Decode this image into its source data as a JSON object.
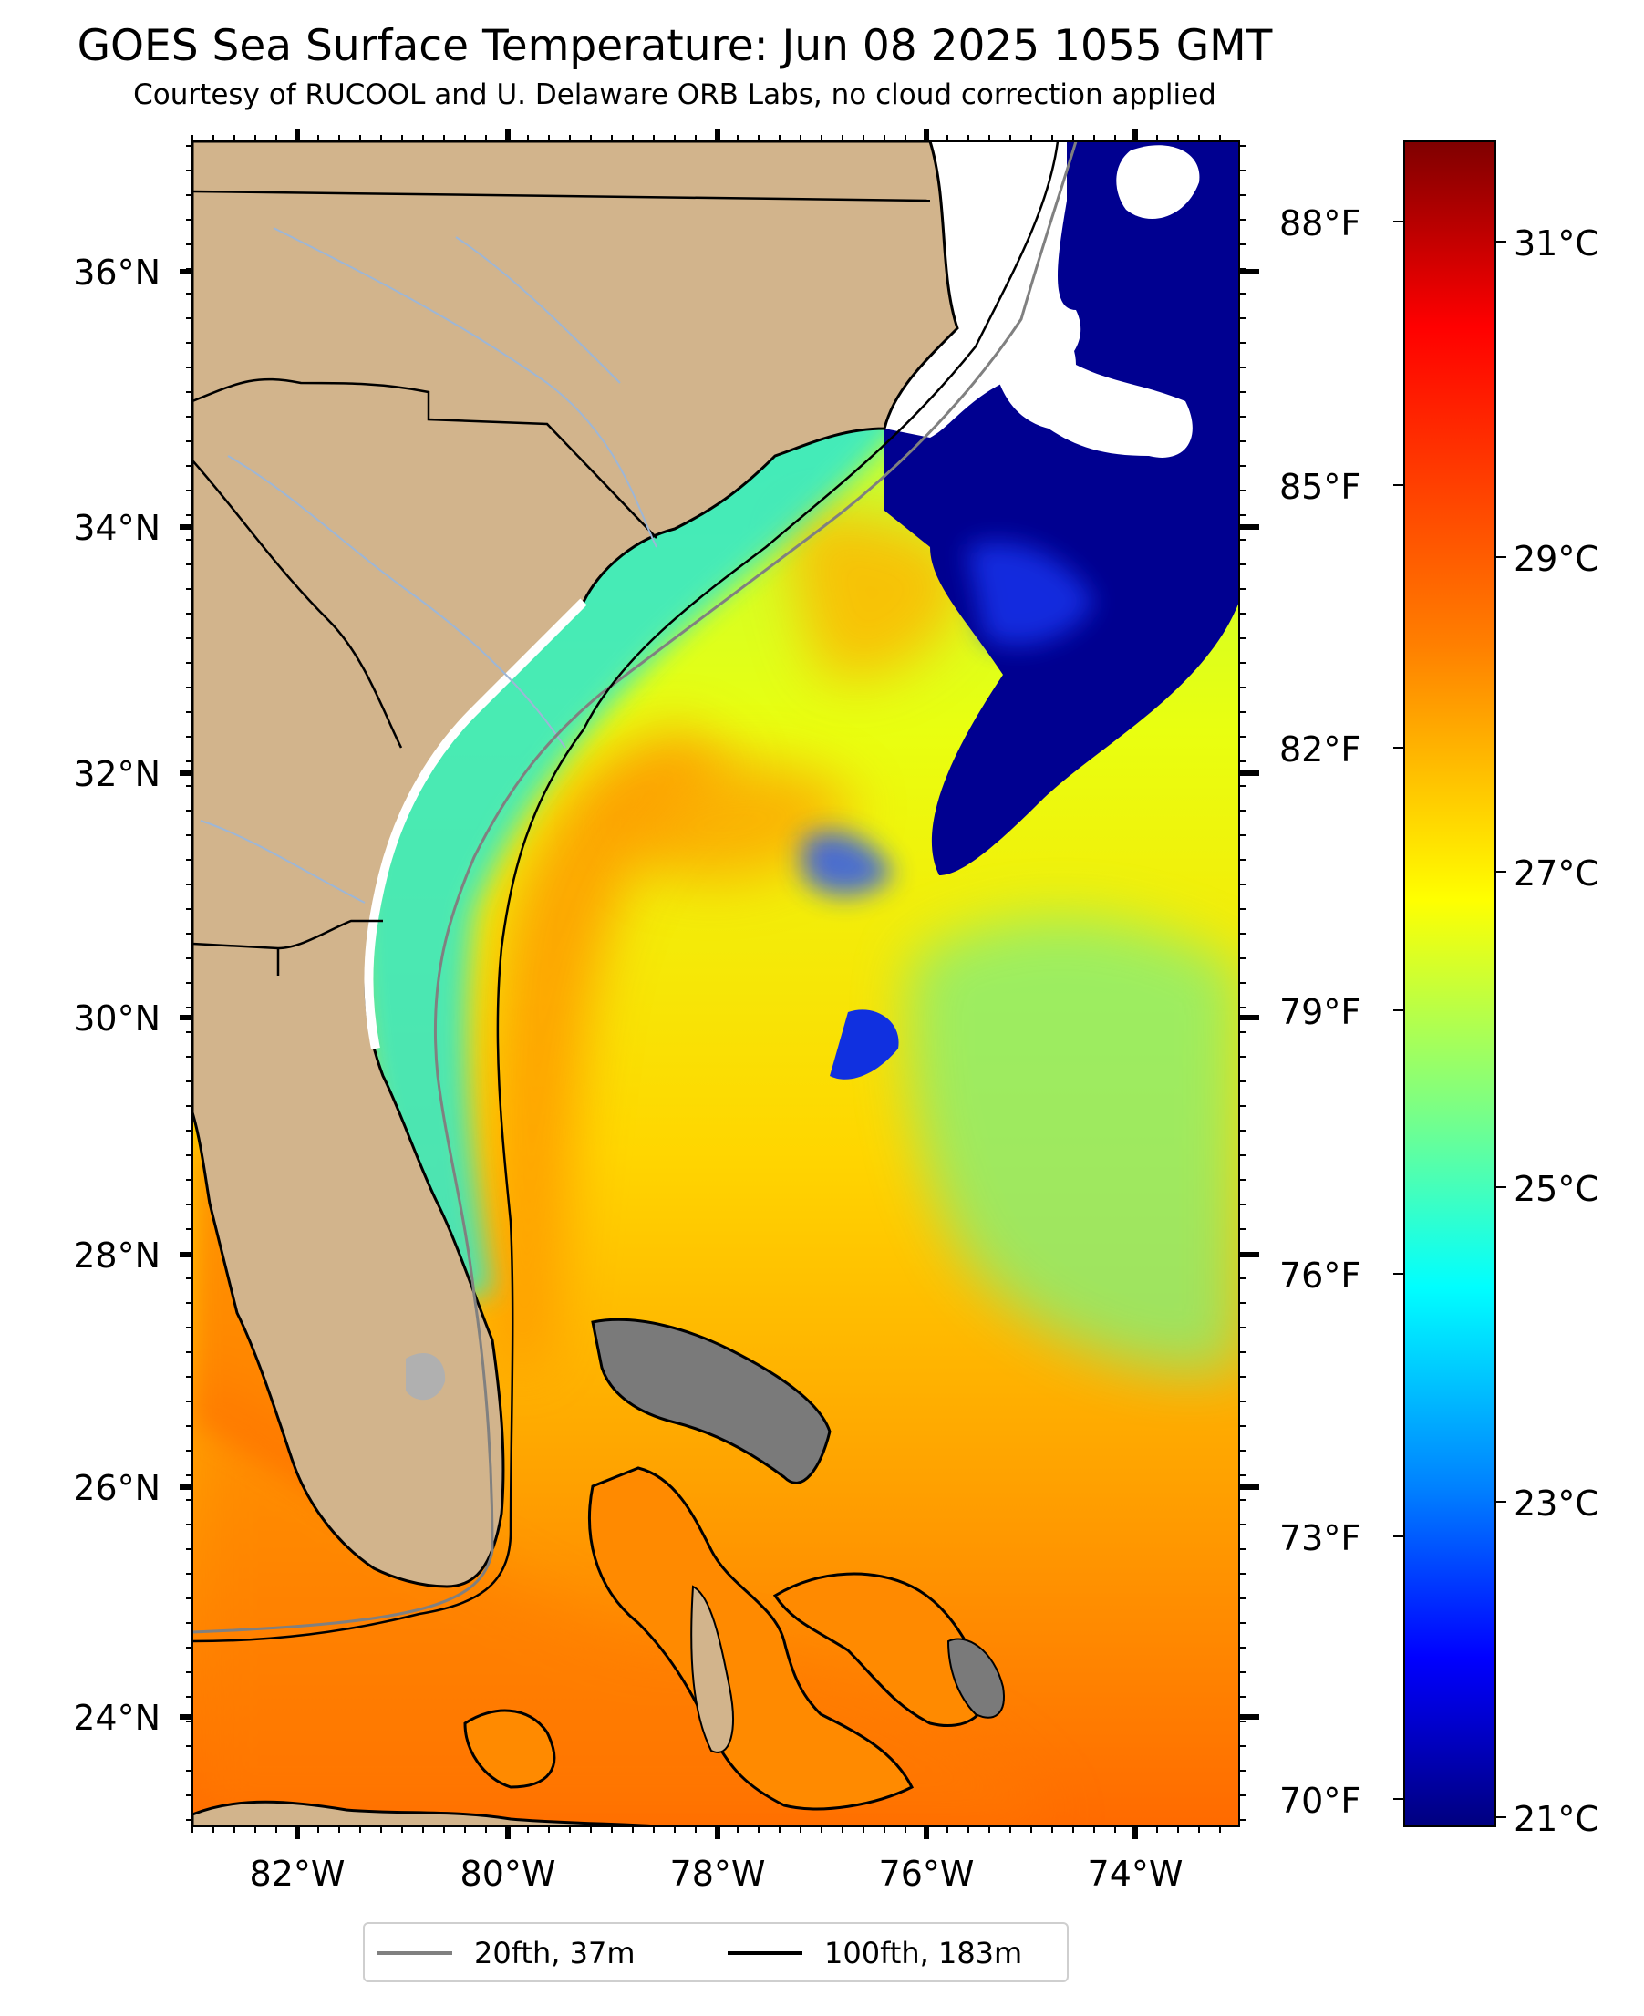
{
  "title": "GOES Sea Surface Temperature: Jun 08 2025 1055 GMT",
  "subtitle": "Courtesy of RUCOOL and U. Delaware ORB Labs, no cloud correction applied",
  "map": {
    "lon_ticks": [
      "82°W",
      "80°W",
      "78°W",
      "76°W",
      "74°W"
    ],
    "lat_ticks": [
      "36°N",
      "34°N",
      "32°N",
      "30°N",
      "28°N",
      "26°N",
      "24°N"
    ],
    "fahrenheit_ticks": [
      "88°F",
      "85°F",
      "82°F",
      "79°F",
      "76°F",
      "73°F",
      "70°F"
    ],
    "colors": {
      "land": "#d2b48c",
      "cloud": "#ffffff",
      "lake": "#b0b0b0",
      "river": "#9db6d6",
      "isobath_20fth": "#808080",
      "isobath_100fth": "#000000"
    }
  },
  "colorbar": {
    "ticks": [
      "31°C",
      "29°C",
      "27°C",
      "25°C",
      "23°C",
      "21°C"
    ],
    "colormap": [
      "#7f0000",
      "#ff0000",
      "#ff8000",
      "#ffff00",
      "#80ff80",
      "#00ffff",
      "#0080ff",
      "#0000ff",
      "#00007f"
    ]
  },
  "legend": {
    "items": [
      {
        "label": "20fth, 37m",
        "color": "#808080"
      },
      {
        "label": "100fth, 183m",
        "color": "#000000"
      }
    ]
  }
}
